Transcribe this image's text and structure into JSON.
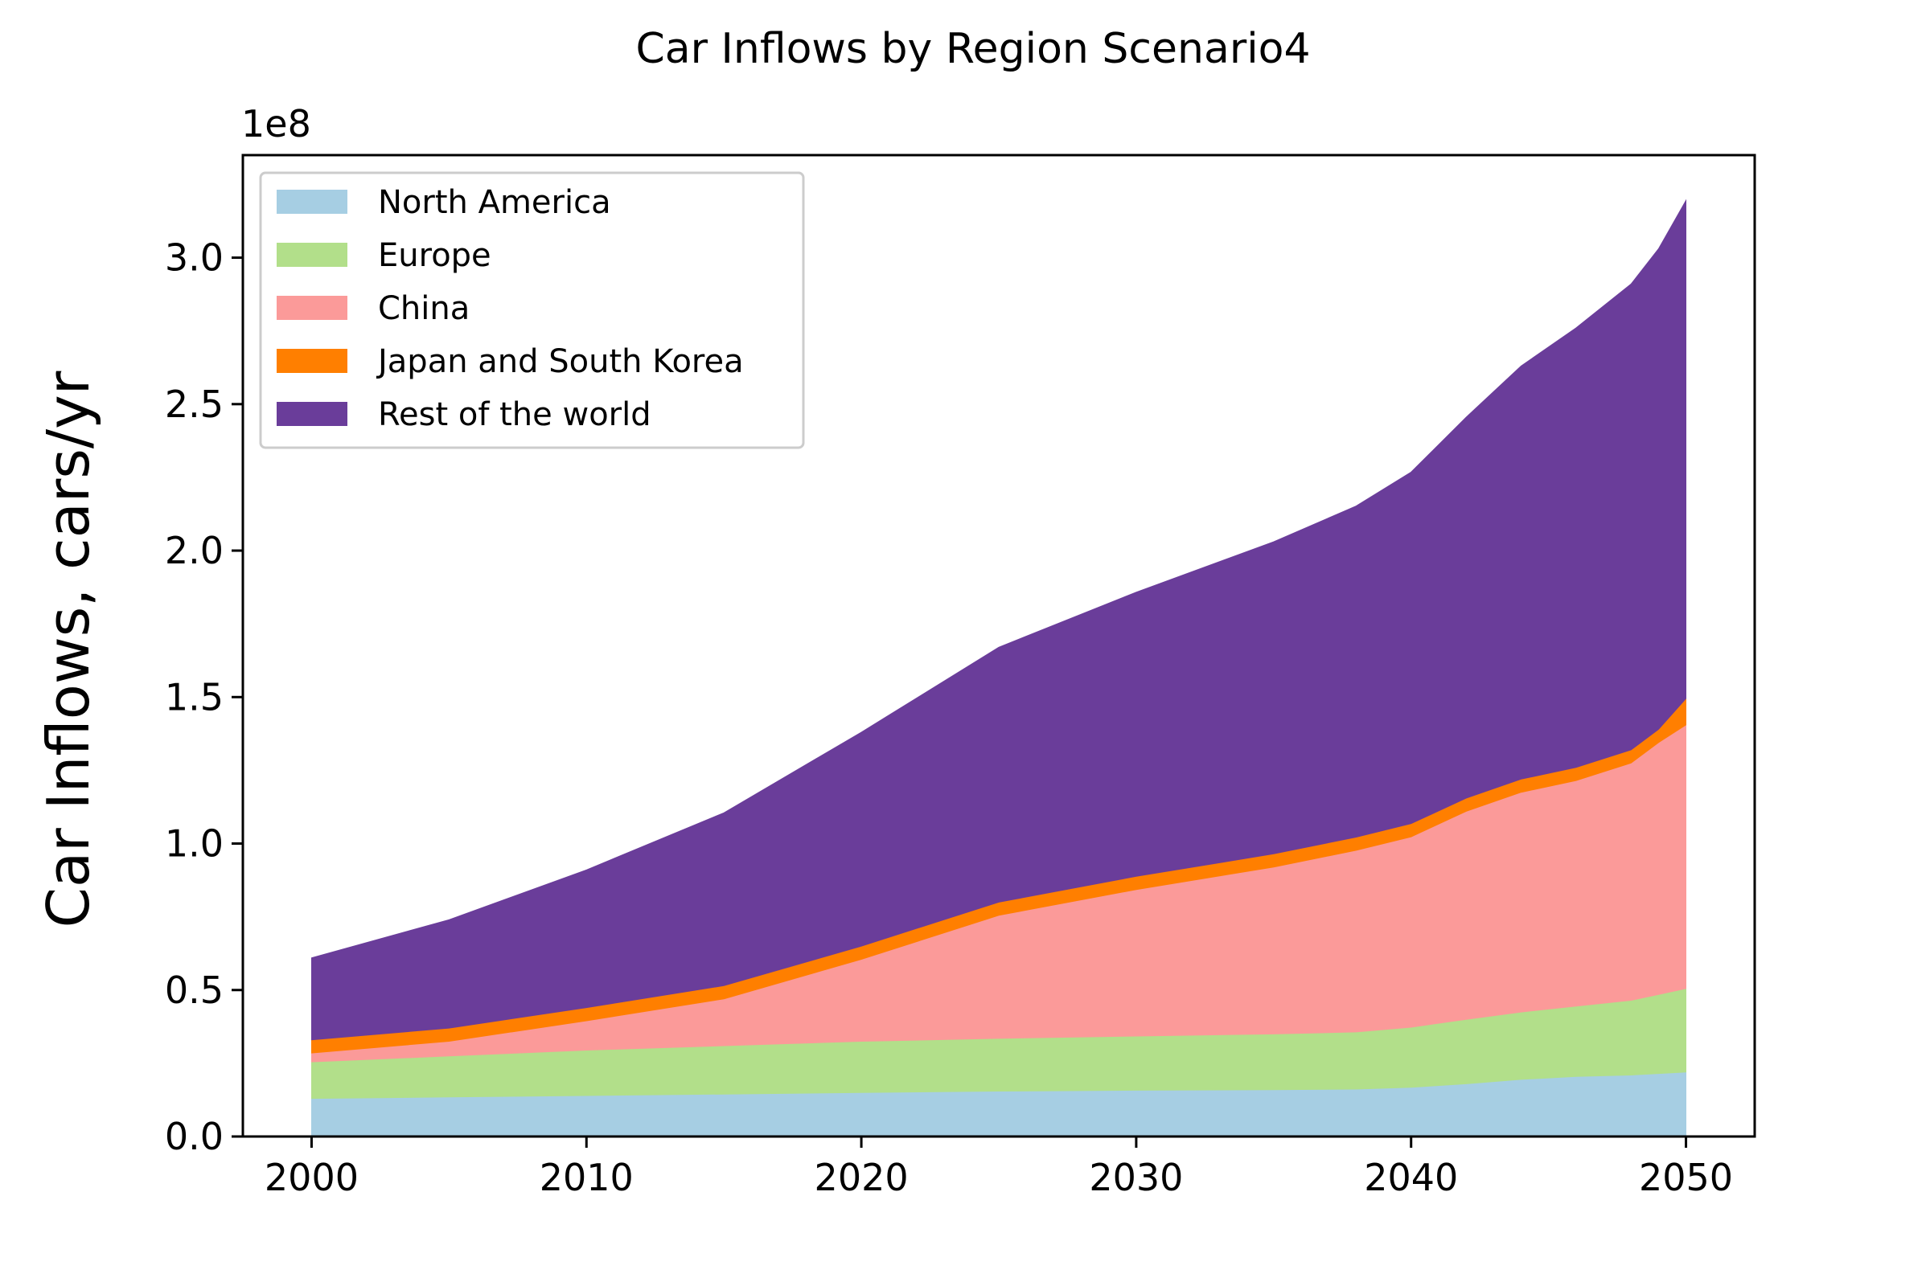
{
  "chart_data": {
    "type": "area",
    "stacked": true,
    "title": "Car Inflows by Region Scenario4",
    "xlabel": "",
    "ylabel": "Car Inflows, cars/yr",
    "y_offset_label": "1e8",
    "y_scale": 100000000,
    "xlim": [
      1997.5,
      2052.5
    ],
    "ylim": [
      0,
      3.35
    ],
    "xticks": [
      2000,
      2010,
      2020,
      2030,
      2040,
      2050
    ],
    "xtick_labels": [
      "2000",
      "2010",
      "2020",
      "2030",
      "2040",
      "2050"
    ],
    "yticks": [
      0,
      0.5,
      1.0,
      1.5,
      2.0,
      2.5,
      3.0
    ],
    "ytick_labels": [
      "0.0",
      "0.5",
      "1.0",
      "1.5",
      "2.0",
      "2.5",
      "3.0"
    ],
    "grid": false,
    "legend_position": "top-left",
    "x": [
      2000,
      2005,
      2010,
      2015,
      2020,
      2025,
      2030,
      2035,
      2038,
      2040,
      2042,
      2044,
      2046,
      2048,
      2049,
      2050
    ],
    "series": [
      {
        "name": "North America",
        "color": "#a6cee3",
        "values": [
          0.13,
          0.135,
          0.14,
          0.145,
          0.15,
          0.155,
          0.158,
          0.16,
          0.162,
          0.168,
          0.18,
          0.195,
          0.205,
          0.21,
          0.215,
          0.22
        ]
      },
      {
        "name": "Europe",
        "color": "#b2df8a",
        "values": [
          0.125,
          0.14,
          0.155,
          0.165,
          0.175,
          0.18,
          0.185,
          0.19,
          0.195,
          0.205,
          0.22,
          0.23,
          0.24,
          0.255,
          0.27,
          0.285
        ]
      },
      {
        "name": "China",
        "color": "#fb9a99",
        "values": [
          0.03,
          0.05,
          0.1,
          0.16,
          0.28,
          0.42,
          0.5,
          0.57,
          0.62,
          0.65,
          0.71,
          0.75,
          0.77,
          0.81,
          0.86,
          0.9
        ]
      },
      {
        "name": "Japan and South Korea",
        "color": "#ff7f00",
        "values": [
          0.045,
          0.045,
          0.045,
          0.045,
          0.045,
          0.045,
          0.045,
          0.045,
          0.045,
          0.045,
          0.045,
          0.045,
          0.045,
          0.045,
          0.045,
          0.09
        ]
      },
      {
        "name": "Rest of the world",
        "color": "#6a3d9a",
        "values": [
          0.28,
          0.37,
          0.47,
          0.59,
          0.73,
          0.87,
          0.97,
          1.065,
          1.13,
          1.2,
          1.3,
          1.41,
          1.5,
          1.59,
          1.64,
          1.7
        ]
      }
    ]
  }
}
